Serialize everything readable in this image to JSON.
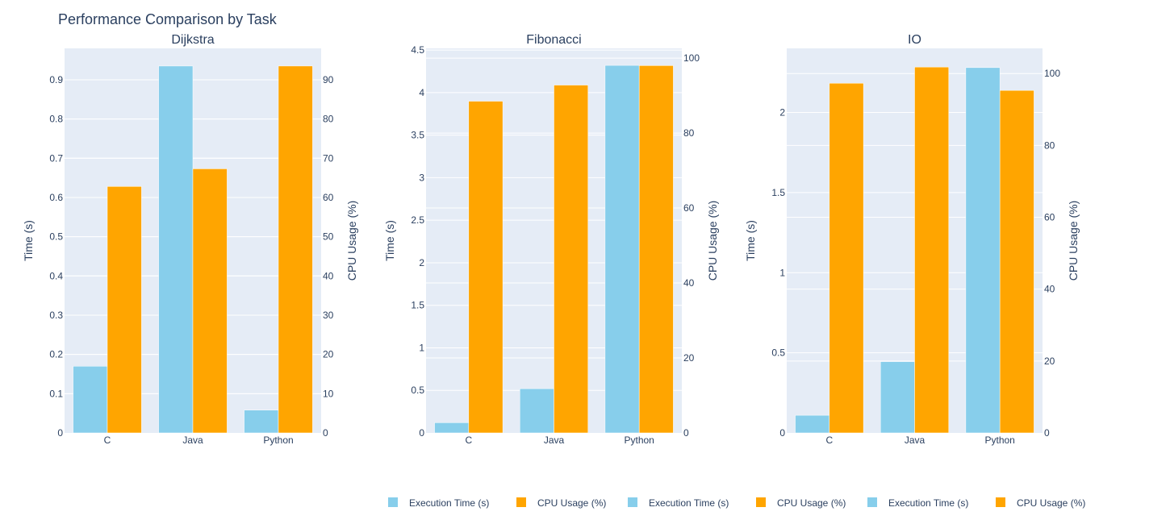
{
  "title": "Performance Comparison by Task",
  "colors": {
    "time": "#87CEEB",
    "cpu": "#FFA500",
    "plot_bg": "#E5ECF6",
    "grid": "#ffffff",
    "text": "#2a3f5f"
  },
  "chart_data": [
    {
      "type": "bar",
      "title": "Dijkstra",
      "categories": [
        "C",
        "Java",
        "Python"
      ],
      "ylabel": "Time (s)",
      "y2label": "CPU Usage (%)",
      "ylim": [
        0,
        0.98
      ],
      "y2lim": [
        0,
        98
      ],
      "yticks": [
        0,
        0.1,
        0.2,
        0.3,
        0.4,
        0.5,
        0.6,
        0.7,
        0.8,
        0.9
      ],
      "yticklabels": [
        "0",
        "0.1",
        "0.2",
        "0.3",
        "0.4",
        "0.5",
        "0.6",
        "0.7",
        "0.8",
        "0.9"
      ],
      "y2ticks": [
        0,
        10,
        20,
        30,
        40,
        50,
        60,
        70,
        80,
        90
      ],
      "y2ticklabels": [
        "0",
        "10",
        "20",
        "30",
        "40",
        "50",
        "60",
        "70",
        "80",
        "90"
      ],
      "series": [
        {
          "name": "Execution Time (s)",
          "axis": "left",
          "values": [
            0.17,
            0.935,
            0.058
          ]
        },
        {
          "name": "CPU Usage (%)",
          "axis": "right",
          "values": [
            62.8,
            67.3,
            93.5
          ]
        }
      ]
    },
    {
      "type": "bar",
      "title": "Fibonacci",
      "categories": [
        "C",
        "Java",
        "Python"
      ],
      "ylabel": "Time (s)",
      "y2label": "CPU Usage (%)",
      "ylim": [
        0,
        4.52
      ],
      "y2lim": [
        0,
        102.6
      ],
      "yticks": [
        0,
        0.5,
        1,
        1.5,
        2,
        2.5,
        3,
        3.5,
        4,
        4.5
      ],
      "yticklabels": [
        "0",
        "0.5",
        "1",
        "1.5",
        "2",
        "2.5",
        "3",
        "3.5",
        "4",
        "4.5"
      ],
      "y2ticks": [
        0,
        20,
        40,
        60,
        80,
        100
      ],
      "y2ticklabels": [
        "0",
        "20",
        "40",
        "60",
        "80",
        "100"
      ],
      "series": [
        {
          "name": "Execution Time (s)",
          "axis": "left",
          "values": [
            0.12,
            0.52,
            4.32
          ]
        },
        {
          "name": "CPU Usage (%)",
          "axis": "right",
          "values": [
            88.5,
            92.8,
            98.0
          ]
        }
      ]
    },
    {
      "type": "bar",
      "title": "IO",
      "categories": [
        "C",
        "Java",
        "Python"
      ],
      "ylabel": "Time (s)",
      "y2label": "CPU Usage (%)",
      "ylim": [
        0,
        2.4
      ],
      "y2lim": [
        0,
        107
      ],
      "yticks": [
        0,
        0.5,
        1,
        1.5,
        2
      ],
      "yticklabels": [
        "0",
        "0.5",
        "1",
        "1.5",
        "2"
      ],
      "y2ticks": [
        0,
        20,
        40,
        60,
        80,
        100
      ],
      "y2ticklabels": [
        "0",
        "20",
        "40",
        "60",
        "80",
        "100"
      ],
      "series": [
        {
          "name": "Execution Time (s)",
          "axis": "left",
          "values": [
            0.11,
            0.445,
            2.28
          ]
        },
        {
          "name": "CPU Usage (%)",
          "axis": "right",
          "values": [
            97.3,
            101.8,
            95.3
          ]
        }
      ]
    }
  ],
  "legend": [
    {
      "label": "Execution Time (s)",
      "series": "time"
    },
    {
      "label": "CPU Usage (%)",
      "series": "cpu"
    },
    {
      "label": "Execution Time (s)",
      "series": "time"
    },
    {
      "label": "CPU Usage (%)",
      "series": "cpu"
    },
    {
      "label": "Execution Time (s)",
      "series": "time"
    },
    {
      "label": "CPU Usage (%)",
      "series": "cpu"
    }
  ]
}
